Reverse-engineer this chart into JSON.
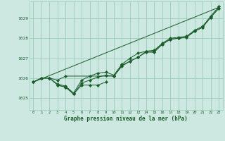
{
  "background_color": "#cce8e0",
  "plot_bg_color": "#cce8e0",
  "grid_color": "#99ccbb",
  "line_color": "#1a5c2a",
  "marker_color": "#1a5c2a",
  "xlabel": "Graphe pression niveau de la mer (hPa)",
  "xlabel_color": "#1a5c2a",
  "ylabel_ticks": [
    1025,
    1026,
    1027,
    1028,
    1029
  ],
  "xlim": [
    -0.5,
    23.5
  ],
  "ylim": [
    1024.4,
    1029.85
  ],
  "xtick_labels": [
    "0",
    "1",
    "2",
    "3",
    "4",
    "5",
    "6",
    "7",
    "8",
    "9",
    "10",
    "11",
    "12",
    "13",
    "14",
    "15",
    "16",
    "17",
    "18",
    "19",
    "20",
    "21",
    "22",
    "23"
  ],
  "series": [
    {
      "x": [
        0,
        1,
        2,
        3,
        4,
        5,
        6,
        7,
        8,
        9,
        10,
        11,
        12,
        13,
        14,
        15,
        16,
        17,
        18,
        19,
        20,
        21,
        22,
        23
      ],
      "y": [
        1025.8,
        1026.0,
        1026.0,
        1025.65,
        1025.55,
        1025.2,
        1025.75,
        1025.9,
        1026.05,
        1026.15,
        1026.1,
        1026.65,
        1026.85,
        1027.05,
        1027.3,
        1027.3,
        1027.7,
        1027.95,
        1028.0,
        1028.05,
        1028.35,
        1028.55,
        1029.05,
        1029.5
      ]
    },
    {
      "x": [
        0,
        1,
        2,
        3,
        4,
        5,
        6,
        7,
        8,
        9,
        10,
        11,
        12,
        13,
        14,
        15,
        16,
        17,
        18,
        19,
        20,
        21,
        22,
        23
      ],
      "y": [
        1025.8,
        1026.0,
        1026.0,
        1025.7,
        1025.6,
        1025.25,
        1025.9,
        1026.1,
        1026.25,
        1026.3,
        1026.15,
        1026.7,
        1027.0,
        1027.25,
        1027.35,
        1027.4,
        1027.75,
        1028.0,
        1028.05,
        1028.1,
        1028.4,
        1028.6,
        1029.1,
        1029.6
      ]
    },
    {
      "x": [
        0,
        1,
        2,
        3,
        4,
        10,
        11,
        12,
        13,
        14,
        15,
        16,
        17,
        18,
        19,
        20,
        21,
        22,
        23
      ],
      "y": [
        1025.8,
        1026.0,
        1026.0,
        1025.9,
        1026.1,
        1026.1,
        1026.6,
        1026.85,
        1027.05,
        1027.35,
        1027.35,
        1027.7,
        1027.95,
        1028.0,
        1028.05,
        1028.35,
        1028.55,
        1029.05,
        1029.5
      ]
    },
    {
      "x": [
        0,
        23
      ],
      "y": [
        1025.8,
        1029.55
      ]
    },
    {
      "x": [
        3,
        4,
        5,
        6,
        7,
        8,
        9
      ],
      "y": [
        1025.65,
        1025.55,
        1025.2,
        1025.65,
        1025.65,
        1025.65,
        1025.8
      ]
    }
  ]
}
